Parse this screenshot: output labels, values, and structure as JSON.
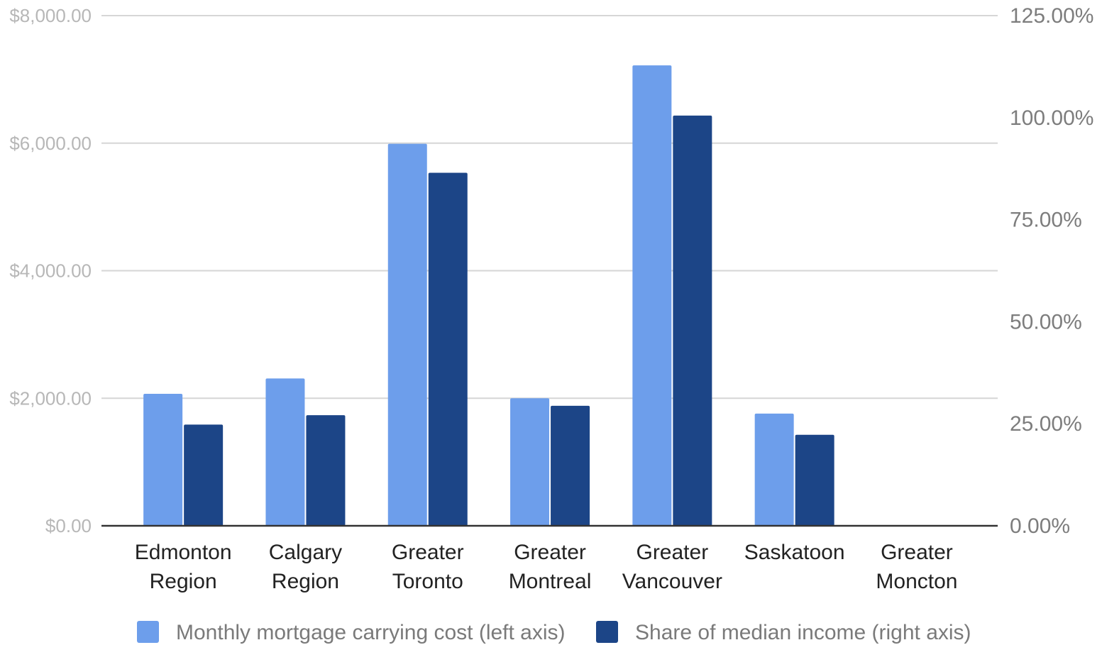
{
  "chart_data": {
    "type": "bar",
    "categories": [
      [
        "Edmonton",
        "Region"
      ],
      [
        "Calgary",
        "Region"
      ],
      [
        "Greater",
        "Toronto"
      ],
      [
        "Greater",
        "Montreal"
      ],
      [
        "Greater",
        "Vancouver"
      ],
      [
        "Saskatoon"
      ],
      [
        "Greater",
        "Moncton"
      ]
    ],
    "series": [
      {
        "name": "Monthly mortgage carrying cost (left axis)",
        "axis": "left",
        "color": "#6d9eeb",
        "values": [
          2070,
          2310,
          5990,
          2000,
          7220,
          1760,
          0
        ]
      },
      {
        "name": "Share of median income (right axis)",
        "axis": "right",
        "color": "#1c4587",
        "values": [
          24.8,
          27.1,
          86.5,
          29.4,
          100.5,
          22.3,
          0
        ]
      }
    ],
    "left_axis": {
      "ylim": [
        0,
        8000
      ],
      "ticks": [
        0,
        2000,
        4000,
        6000,
        8000
      ],
      "tick_labels": [
        "$0.00",
        "$2,000.00",
        "$4,000.00",
        "$6,000.00",
        "$8,000.00"
      ]
    },
    "right_axis": {
      "ylim": [
        0,
        125
      ],
      "ticks": [
        0,
        25,
        50,
        75,
        100,
        125
      ],
      "tick_labels": [
        "0.00%",
        "25.00%",
        "50.00%",
        "75.00%",
        "100.00%",
        "125.00%"
      ]
    },
    "grid": true,
    "legend_position": "bottom",
    "colors": {
      "grid": "#d6d6d6",
      "baseline": "#333333"
    }
  }
}
